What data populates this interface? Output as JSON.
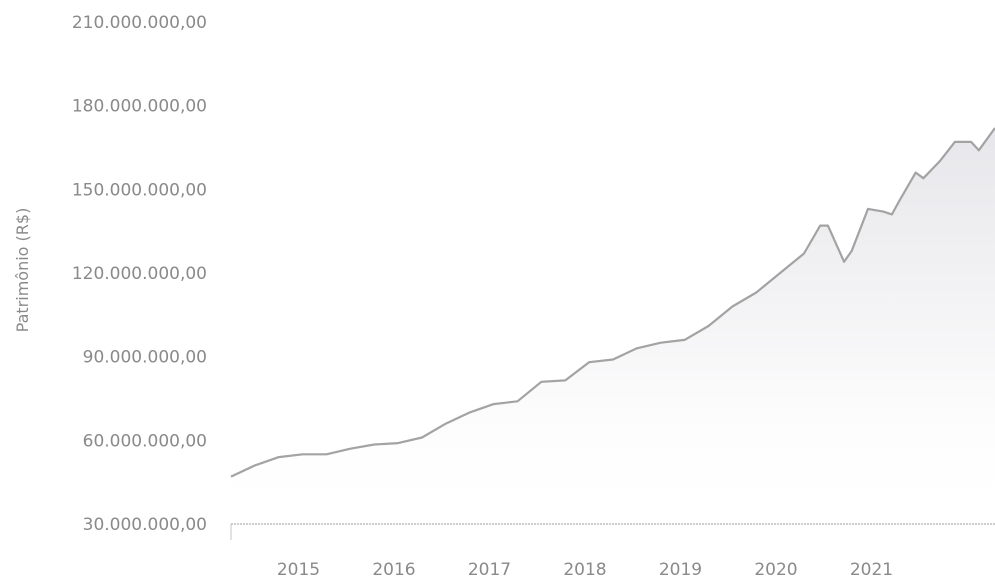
{
  "chart_data": {
    "type": "area",
    "title": "",
    "xlabel": "",
    "ylabel": "Patrimônio (R$)",
    "ylim": [
      30000000,
      210000000
    ],
    "xlim": [
      2014.0,
      2022.0
    ],
    "y_ticks": [
      30000000,
      60000000,
      90000000,
      120000000,
      150000000,
      180000000,
      210000000
    ],
    "y_tick_labels": [
      "30.000.000,00",
      "60.000.000,00",
      "90.000.000,00",
      "120.000.000,00",
      "150.000.000,00",
      "180.000.000,00",
      "210.000.000,00"
    ],
    "x_ticks": [
      2015,
      2016,
      2017,
      2018,
      2019,
      2020,
      2021
    ],
    "x_tick_labels": [
      "2015",
      "2016",
      "2017",
      "2018",
      "2019",
      "2020",
      "2021"
    ],
    "grid": false,
    "legend": "none",
    "colors": {
      "line": "#a3a3a3",
      "fill": "#e6e6ea",
      "baseline": "#bdbdbd",
      "text": "#8a8a8a"
    },
    "series": [
      {
        "x": [
          2014.0,
          2014.25,
          2014.5,
          2014.75,
          2015.0,
          2015.25,
          2015.5,
          2015.75,
          2016.0,
          2016.25,
          2016.5,
          2016.75,
          2017.0,
          2017.25,
          2017.5,
          2017.75,
          2018.0,
          2018.25,
          2018.5,
          2018.75,
          2019.0,
          2019.25,
          2019.5,
          2019.75,
          2020.0,
          2020.17,
          2020.25,
          2020.42,
          2020.5,
          2020.67,
          2020.83,
          2020.92,
          2021.0,
          2021.17,
          2021.25,
          2021.42,
          2021.58,
          2021.75,
          2021.83,
          2022.0
        ],
        "y": [
          47000000,
          51000000,
          54000000,
          55000000,
          55000000,
          57000000,
          58500000,
          59000000,
          61000000,
          66000000,
          70000000,
          73000000,
          74000000,
          81000000,
          81500000,
          88000000,
          89000000,
          93000000,
          95000000,
          96000000,
          101000000,
          108000000,
          113000000,
          120000000,
          127000000,
          137000000,
          137000000,
          124000000,
          128000000,
          143000000,
          142000000,
          141000000,
          146000000,
          156000000,
          154000000,
          160000000,
          167000000,
          167000000,
          164000000,
          172000000
        ]
      }
    ]
  }
}
